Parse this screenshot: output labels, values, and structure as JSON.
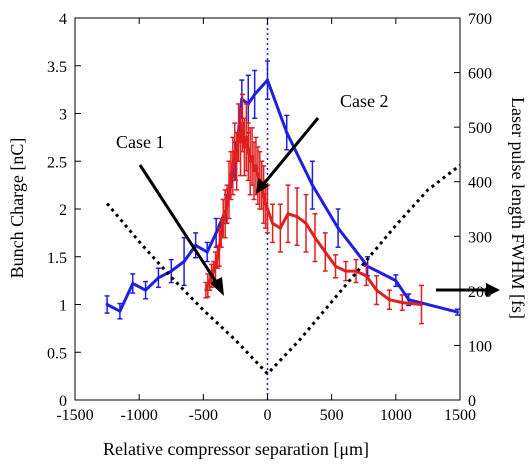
{
  "chart_data": {
    "type": "line",
    "xlabel": "Relative compressor separation [μm]",
    "ylabel_left": "Bunch Charge [nC]",
    "ylabel_right": "Laser pulse length FWHM [fs]",
    "xlim": [
      -1500,
      1500
    ],
    "ylim_left": [
      0,
      4
    ],
    "ylim_right": [
      0,
      700
    ],
    "x_ticks": [
      "-1500",
      "-1000",
      "-500",
      "0",
      "500",
      "1000",
      "1500"
    ],
    "x_tick_values": [
      -1500,
      -1000,
      -500,
      0,
      500,
      1000,
      1500
    ],
    "y_left_ticks": [
      "0",
      "0.5",
      "1",
      "1.5",
      "2",
      "2.5",
      "3",
      "3.5",
      "4"
    ],
    "y_left_tick_values": [
      0,
      0.5,
      1,
      1.5,
      2,
      2.5,
      3,
      3.5,
      4
    ],
    "y_right_ticks": [
      "0",
      "100",
      "200",
      "300",
      "400",
      "500",
      "600",
      "700"
    ],
    "y_right_tick_values": [
      0,
      100,
      200,
      300,
      400,
      500,
      600,
      700
    ],
    "series": [
      {
        "color": "#1f1fe0",
        "axis": "left",
        "x": [
          -1250,
          -1150,
          -1050,
          -950,
          -850,
          -750,
          -650,
          -560,
          -470,
          -400,
          -320,
          -250,
          -200,
          -150,
          -100,
          0,
          150,
          350,
          550,
          780,
          1000,
          1100,
          1480
        ],
        "y": [
          1.0,
          0.93,
          1.22,
          1.15,
          1.28,
          1.35,
          1.45,
          1.62,
          1.55,
          1.75,
          2.0,
          2.5,
          3.15,
          3.1,
          3.2,
          3.35,
          2.8,
          2.25,
          1.8,
          1.4,
          1.25,
          1.05,
          0.92
        ],
        "err": [
          0.09,
          0.08,
          0.1,
          0.09,
          0.1,
          0.12,
          0.25,
          0.13,
          0.1,
          0.15,
          0.15,
          0.2,
          0.2,
          0.3,
          0.25,
          0.2,
          0.18,
          0.25,
          0.2,
          0.1,
          0.06,
          0.06,
          0.03
        ]
      },
      {
        "color": "#e01f1f",
        "axis": "left",
        "x": [
          -480,
          -465,
          -450,
          -435,
          -420,
          -405,
          -390,
          -375,
          -360,
          -345,
          -330,
          -315,
          -300,
          -285,
          -270,
          -255,
          -240,
          -225,
          -210,
          -195,
          -180,
          -165,
          -150,
          -135,
          -120,
          -105,
          -90,
          -75,
          -60,
          -45,
          -30,
          -15,
          0,
          40,
          100,
          160,
          230,
          300,
          370,
          450,
          530,
          610,
          690,
          770,
          850,
          950,
          1050,
          1200
        ],
        "y": [
          1.15,
          1.2,
          1.25,
          1.3,
          1.35,
          1.4,
          1.5,
          1.6,
          1.75,
          1.9,
          1.95,
          2.05,
          2.2,
          2.35,
          2.45,
          2.6,
          2.5,
          2.8,
          2.7,
          2.9,
          2.65,
          2.75,
          2.6,
          2.5,
          2.55,
          2.4,
          2.45,
          2.35,
          2.3,
          2.25,
          2.15,
          2.05,
          2.0,
          1.85,
          1.8,
          1.95,
          1.92,
          1.85,
          1.7,
          1.55,
          1.4,
          1.35,
          1.35,
          1.3,
          1.15,
          1.05,
          1.02,
          1.0
        ],
        "err": [
          0.08,
          0.12,
          0.1,
          0.12,
          0.1,
          0.15,
          0.12,
          0.2,
          0.15,
          0.2,
          0.25,
          0.2,
          0.3,
          0.25,
          0.3,
          0.3,
          0.3,
          0.3,
          0.35,
          0.3,
          0.3,
          0.35,
          0.3,
          0.35,
          0.3,
          0.3,
          0.3,
          0.3,
          0.3,
          0.25,
          0.3,
          0.25,
          0.25,
          0.2,
          0.25,
          0.3,
          0.3,
          0.3,
          0.25,
          0.2,
          0.12,
          0.1,
          0.12,
          0.1,
          0.15,
          0.1,
          0.08,
          0.2
        ]
      },
      {
        "color": "#000000",
        "axis": "right",
        "style": "dotted",
        "x": [
          -1250,
          -1000,
          -750,
          -500,
          -250,
          0,
          250,
          500,
          750,
          1000,
          1250,
          1500
        ],
        "y": [
          360,
          290,
          225,
          165,
          110,
          48,
          110,
          180,
          250,
          320,
          385,
          430
        ]
      }
    ],
    "annotations": [
      {
        "text": "Case 1"
      },
      {
        "text": "Case 2"
      }
    ],
    "reference_line": {
      "x": 0,
      "color": "#2020e0",
      "style": "dotted"
    }
  }
}
